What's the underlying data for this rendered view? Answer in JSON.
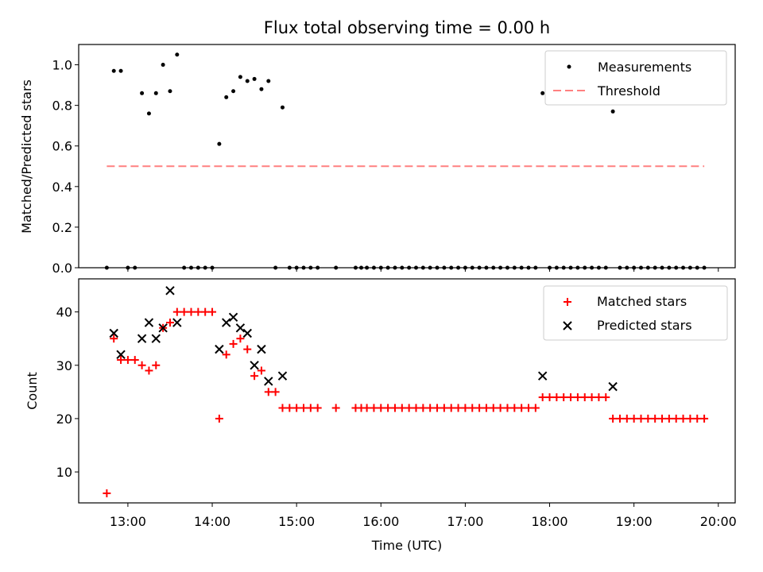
{
  "colors": {
    "threshold": "#ff8080",
    "matched": "#ff0000",
    "predicted": "#000000",
    "measurement": "#000000"
  },
  "chart_data": [
    {
      "type": "scatter",
      "title": "Flux total observing time = 0.00 h",
      "xlabel": "",
      "ylabel": "Matched/Predicted stars",
      "xlim": [
        "12:25",
        "20:12"
      ],
      "ylim": [
        0,
        1.1
      ],
      "yticks": [
        "0.0",
        "0.2",
        "0.4",
        "0.6",
        "0.8",
        "1.0"
      ],
      "yticks_values": [
        0,
        0.2,
        0.4,
        0.6,
        0.8,
        1.0
      ],
      "legend": {
        "placement": "top-right",
        "entries": [
          "Measurements",
          "Threshold"
        ]
      },
      "threshold": {
        "name": "Threshold",
        "y": 0.5,
        "x": [
          "12:45",
          "19:50"
        ]
      },
      "series": [
        {
          "name": "Measurements",
          "x": [
            "12:45",
            "12:50",
            "12:55",
            "13:00",
            "13:05",
            "13:10",
            "13:15",
            "13:20",
            "13:25",
            "13:30",
            "13:35",
            "13:40",
            "13:45",
            "13:50",
            "13:55",
            "14:00",
            "14:05",
            "14:10",
            "14:15",
            "14:20",
            "14:25",
            "14:30",
            "14:35",
            "14:40",
            "14:45",
            "14:50",
            "14:55",
            "15:00",
            "15:05",
            "15:10",
            "15:15",
            "15:28",
            "15:42",
            "15:46",
            "15:50",
            "15:55",
            "16:00",
            "16:05",
            "16:10",
            "16:15",
            "16:20",
            "16:25",
            "16:30",
            "16:35",
            "16:40",
            "16:45",
            "16:50",
            "16:55",
            "17:00",
            "17:05",
            "17:10",
            "17:15",
            "17:20",
            "17:25",
            "17:30",
            "17:35",
            "17:40",
            "17:45",
            "17:50",
            "17:55",
            "18:00",
            "18:05",
            "18:10",
            "18:15",
            "18:20",
            "18:25",
            "18:30",
            "18:35",
            "18:40",
            "18:45",
            "18:50",
            "18:55",
            "19:00",
            "19:05",
            "19:10",
            "19:15",
            "19:20",
            "19:25",
            "19:30",
            "19:35",
            "19:40",
            "19:45",
            "19:50"
          ],
          "y": [
            0,
            0.97,
            0.97,
            0,
            0,
            0.86,
            0.76,
            0.86,
            1.0,
            0.87,
            1.05,
            0,
            0,
            0,
            0,
            0,
            0.61,
            0.84,
            0.87,
            0.94,
            0.92,
            0.93,
            0.88,
            0.92,
            0,
            0.79,
            0,
            0,
            0,
            0,
            0,
            0,
            0,
            0,
            0,
            0,
            0,
            0,
            0,
            0,
            0,
            0,
            0,
            0,
            0,
            0,
            0,
            0,
            0,
            0,
            0,
            0,
            0,
            0,
            0,
            0,
            0,
            0,
            0,
            0.86,
            0,
            0,
            0,
            0,
            0,
            0,
            0,
            0,
            0,
            0.77,
            0,
            0,
            0,
            0,
            0,
            0,
            0,
            0,
            0,
            0,
            0,
            0,
            0
          ]
        }
      ]
    },
    {
      "type": "scatter",
      "title": "",
      "xlabel": "Time (UTC)",
      "ylabel": "Count",
      "xlim": [
        "12:25",
        "20:12"
      ],
      "ylim": [
        4.2,
        46.2
      ],
      "xticks": [
        "13:00",
        "14:00",
        "15:00",
        "16:00",
        "17:00",
        "18:00",
        "19:00",
        "20:00"
      ],
      "yticks": [
        "10",
        "20",
        "30",
        "40"
      ],
      "yticks_values": [
        10,
        20,
        30,
        40
      ],
      "legend": {
        "placement": "top-right",
        "entries": [
          "Matched stars",
          "Predicted stars"
        ]
      },
      "series": [
        {
          "name": "Matched stars",
          "x": [
            "12:45",
            "12:50",
            "12:55",
            "13:00",
            "13:05",
            "13:10",
            "13:15",
            "13:20",
            "13:25",
            "13:30",
            "13:35",
            "13:40",
            "13:45",
            "13:50",
            "13:55",
            "14:00",
            "14:05",
            "14:10",
            "14:15",
            "14:20",
            "14:25",
            "14:30",
            "14:35",
            "14:40",
            "14:45",
            "14:50",
            "14:55",
            "15:00",
            "15:05",
            "15:10",
            "15:15",
            "15:28",
            "15:42",
            "15:46",
            "15:50",
            "15:55",
            "16:00",
            "16:05",
            "16:10",
            "16:15",
            "16:20",
            "16:25",
            "16:30",
            "16:35",
            "16:40",
            "16:45",
            "16:50",
            "16:55",
            "17:00",
            "17:05",
            "17:10",
            "17:15",
            "17:20",
            "17:25",
            "17:30",
            "17:35",
            "17:40",
            "17:45",
            "17:50",
            "17:55",
            "18:00",
            "18:05",
            "18:10",
            "18:15",
            "18:20",
            "18:25",
            "18:30",
            "18:35",
            "18:40",
            "18:45",
            "18:50",
            "18:55",
            "19:00",
            "19:05",
            "19:10",
            "19:15",
            "19:20",
            "19:25",
            "19:30",
            "19:35",
            "19:40",
            "19:45",
            "19:50"
          ],
          "y": [
            6,
            35,
            31,
            31,
            31,
            30,
            29,
            30,
            37,
            38,
            40,
            40,
            40,
            40,
            40,
            40,
            20,
            32,
            34,
            35,
            33,
            28,
            29,
            25,
            25,
            22,
            22,
            22,
            22,
            22,
            22,
            22,
            22,
            22,
            22,
            22,
            22,
            22,
            22,
            22,
            22,
            22,
            22,
            22,
            22,
            22,
            22,
            22,
            22,
            22,
            22,
            22,
            22,
            22,
            22,
            22,
            22,
            22,
            22,
            24,
            24,
            24,
            24,
            24,
            24,
            24,
            24,
            24,
            24,
            20,
            20,
            20,
            20,
            20,
            20,
            20,
            20,
            20,
            20,
            20,
            20,
            20,
            20
          ]
        },
        {
          "name": "Predicted stars",
          "x": [
            "12:50",
            "12:55",
            "13:10",
            "13:15",
            "13:20",
            "13:25",
            "13:30",
            "13:35",
            "14:05",
            "14:10",
            "14:15",
            "14:20",
            "14:25",
            "14:30",
            "14:35",
            "14:40",
            "14:50",
            "17:55",
            "18:45"
          ],
          "y": [
            36,
            32,
            35,
            38,
            35,
            37,
            44,
            38,
            33,
            38,
            39,
            37,
            36,
            30,
            33,
            27,
            28,
            28,
            26
          ]
        }
      ]
    }
  ]
}
